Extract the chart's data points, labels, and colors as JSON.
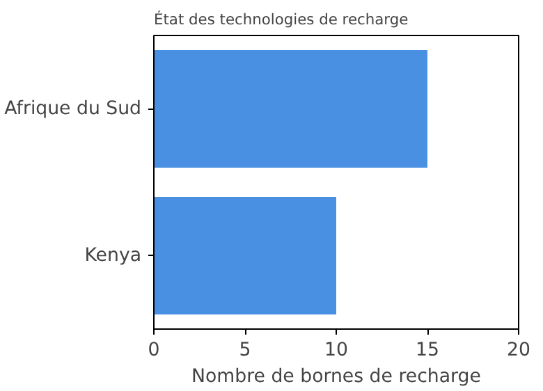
{
  "chart_data": {
    "type": "bar",
    "orientation": "horizontal",
    "title": "État des technologies de recharge",
    "xlabel": "Nombre de bornes de recharge",
    "categories": [
      "Afrique du Sud",
      "Kenya"
    ],
    "values": [
      15,
      10
    ],
    "color": "#4a90e2",
    "xlim": [
      0,
      20
    ],
    "xticks": [
      0,
      5,
      10,
      15,
      20
    ],
    "grid": false
  }
}
